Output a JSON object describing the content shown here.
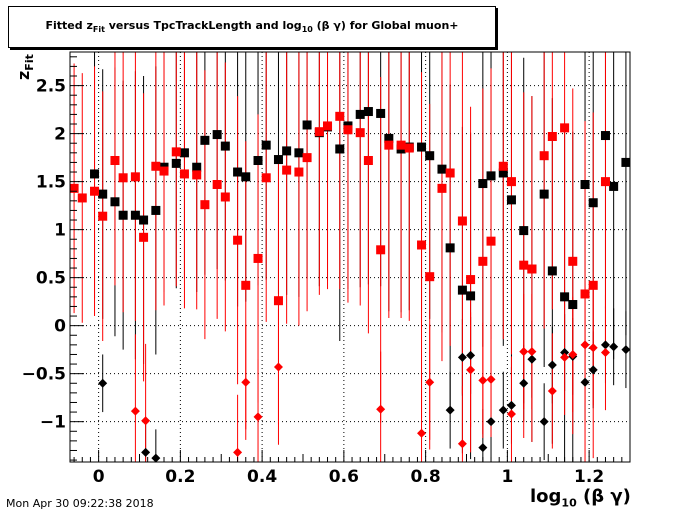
{
  "title_prefix": "Fitted  z",
  "title_sub": "Fit",
  "title_suffix": "  versus TpcTrackLength and log",
  "title_sub2": "10",
  "title_end": " (β γ) for Global muon+",
  "ylabel_main": "z",
  "ylabel_sub": "Fit",
  "xlabel_main": "log",
  "xlabel_sub": "10",
  "xlabel_end": " (β γ)",
  "timestamp": "Mon Apr 30 09:22:38 2018",
  "colors": {
    "black_series": "#000000",
    "red_series": "#ff0000",
    "grid": "#000000"
  },
  "chart_data": {
    "type": "scatter",
    "xlim": [
      -0.07,
      1.3
    ],
    "ylim": [
      -1.42,
      2.85
    ],
    "grid": true,
    "xticks": [
      0,
      0.2,
      0.4,
      0.6,
      0.8,
      1,
      1.2
    ],
    "xtick_labels": [
      "0",
      "0.2",
      "0.4",
      "0.6",
      "0.8",
      "1",
      "1.2"
    ],
    "yticks": [
      -1,
      -0.5,
      0,
      0.5,
      1,
      1.5,
      2,
      2.5
    ],
    "ytick_labels": [
      "−1",
      "−0.5",
      "0",
      "0.5",
      "1",
      "1.5",
      "2",
      "2.5"
    ],
    "series": [
      {
        "color": "#000000",
        "marker": "square",
        "points": [
          [
            -0.01,
            1.58,
            1.3
          ],
          [
            0.01,
            1.37,
            1.3
          ],
          [
            0.04,
            1.29,
            1.4
          ],
          [
            0.06,
            1.15,
            1.4
          ],
          [
            0.09,
            1.15,
            1.5
          ],
          [
            0.11,
            1.1,
            1.5
          ],
          [
            0.14,
            1.2,
            1.5
          ],
          [
            0.16,
            1.65,
            1.3
          ],
          [
            0.19,
            1.69,
            1.3
          ],
          [
            0.21,
            1.8,
            1.3
          ],
          [
            0.24,
            1.65,
            1.3
          ],
          [
            0.26,
            1.93,
            1.4
          ],
          [
            0.29,
            1.99,
            1.4
          ],
          [
            0.31,
            1.87,
            1.4
          ],
          [
            0.34,
            1.6,
            1.4
          ],
          [
            0.36,
            1.55,
            1.3
          ],
          [
            0.39,
            1.72,
            1.3
          ],
          [
            0.41,
            1.88,
            1.4
          ],
          [
            0.44,
            1.73,
            1.4
          ],
          [
            0.46,
            1.82,
            1.5
          ],
          [
            0.49,
            1.8,
            1.5
          ],
          [
            0.51,
            2.09,
            1.6
          ],
          [
            0.54,
            2.01,
            1.6
          ],
          [
            0.56,
            2.07,
            1.6
          ],
          [
            0.59,
            1.84,
            2.0
          ],
          [
            0.61,
            2.08,
            1.7
          ],
          [
            0.64,
            2.2,
            1.8
          ],
          [
            0.66,
            2.23,
            1.8
          ],
          [
            0.69,
            2.21,
            1.8
          ],
          [
            0.71,
            1.95,
            1.8
          ],
          [
            0.74,
            1.84,
            1.7
          ],
          [
            0.76,
            1.86,
            1.7
          ],
          [
            0.79,
            1.86,
            1.7
          ],
          [
            0.81,
            1.77,
            1.7
          ],
          [
            0.84,
            1.63,
            1.7
          ],
          [
            0.86,
            0.81,
            1.7
          ],
          [
            0.89,
            0.37,
            1.7
          ],
          [
            0.91,
            0.31,
            1.7
          ],
          [
            0.94,
            1.48,
            1.7
          ],
          [
            0.96,
            1.56,
            1.7
          ],
          [
            0.99,
            1.59,
            1.8
          ],
          [
            1.01,
            1.31,
            1.8
          ],
          [
            1.04,
            0.99,
            1.8
          ],
          [
            1.06,
            0.59,
            1.8
          ],
          [
            1.09,
            1.37,
            1.8
          ],
          [
            1.11,
            0.57,
            1.8
          ],
          [
            1.14,
            0.3,
            1.8
          ],
          [
            1.16,
            0.22,
            1.8
          ],
          [
            1.19,
            1.47,
            1.8
          ],
          [
            1.21,
            1.28,
            1.8
          ],
          [
            1.24,
            1.98,
            1.8
          ],
          [
            1.26,
            1.45,
            1.8
          ],
          [
            1.29,
            1.7,
            1.8
          ],
          [
            0.01,
            -0.6,
            0.3
          ],
          [
            0.115,
            -1.32,
            0.3
          ],
          [
            0.14,
            -1.38,
            0.3
          ],
          [
            0.86,
            -0.88,
            0.4
          ],
          [
            0.89,
            -0.33,
            0.4
          ],
          [
            0.91,
            -0.31,
            0.4
          ],
          [
            0.94,
            -1.27,
            0.4
          ],
          [
            0.96,
            -1.0,
            0.4
          ],
          [
            0.99,
            -0.88,
            0.4
          ],
          [
            1.01,
            -0.83,
            0.4
          ],
          [
            1.04,
            -0.6,
            0.4
          ],
          [
            1.06,
            -0.35,
            0.4
          ],
          [
            1.09,
            -1.0,
            0.4
          ],
          [
            1.11,
            -0.41,
            0.4
          ],
          [
            1.14,
            -0.28,
            0.4
          ],
          [
            1.16,
            -0.32,
            0.4
          ],
          [
            1.19,
            -0.59,
            0.4
          ],
          [
            1.21,
            -0.46,
            0.4
          ],
          [
            1.24,
            -0.2,
            0.4
          ],
          [
            1.26,
            -0.22,
            0.4
          ],
          [
            1.29,
            -0.25,
            0.4
          ]
        ]
      },
      {
        "color": "#ff0000",
        "marker": "square",
        "points": [
          [
            -0.06,
            1.43,
            1.3
          ],
          [
            -0.04,
            1.33,
            1.3
          ],
          [
            -0.01,
            1.4,
            1.3
          ],
          [
            0.01,
            1.14,
            1.3
          ],
          [
            0.04,
            1.72,
            1.3
          ],
          [
            0.06,
            1.54,
            1.4
          ],
          [
            0.09,
            1.55,
            1.5
          ],
          [
            0.11,
            0.92,
            1.5
          ],
          [
            0.14,
            1.66,
            1.5
          ],
          [
            0.16,
            1.61,
            1.4
          ],
          [
            0.19,
            1.81,
            1.4
          ],
          [
            0.21,
            1.58,
            1.4
          ],
          [
            0.24,
            1.57,
            1.4
          ],
          [
            0.26,
            1.26,
            1.4
          ],
          [
            0.29,
            1.47,
            1.4
          ],
          [
            0.31,
            1.34,
            1.4
          ],
          [
            0.34,
            0.89,
            1.5
          ],
          [
            0.36,
            0.42,
            1.5
          ],
          [
            0.39,
            0.7,
            1.5
          ],
          [
            0.41,
            1.54,
            1.5
          ],
          [
            0.44,
            0.26,
            1.5
          ],
          [
            0.46,
            1.62,
            1.6
          ],
          [
            0.49,
            1.6,
            1.6
          ],
          [
            0.51,
            1.75,
            1.6
          ],
          [
            0.54,
            2.02,
            1.7
          ],
          [
            0.56,
            2.08,
            1.7
          ],
          [
            0.59,
            2.18,
            1.8
          ],
          [
            0.61,
            2.04,
            1.8
          ],
          [
            0.64,
            2.01,
            1.8
          ],
          [
            0.66,
            1.72,
            1.8
          ],
          [
            0.69,
            0.79,
            1.8
          ],
          [
            0.71,
            1.88,
            1.8
          ],
          [
            0.74,
            1.88,
            1.8
          ],
          [
            0.76,
            1.85,
            1.8
          ],
          [
            0.79,
            0.84,
            1.8
          ],
          [
            0.81,
            0.51,
            1.8
          ],
          [
            0.84,
            1.43,
            1.8
          ],
          [
            0.86,
            1.59,
            1.8
          ],
          [
            0.89,
            1.09,
            1.8
          ],
          [
            0.91,
            0.48,
            1.8
          ],
          [
            0.94,
            0.67,
            1.8
          ],
          [
            0.96,
            0.88,
            1.8
          ],
          [
            0.99,
            1.66,
            1.8
          ],
          [
            1.01,
            1.5,
            1.8
          ],
          [
            1.04,
            0.63,
            1.8
          ],
          [
            1.06,
            0.59,
            1.8
          ],
          [
            1.09,
            1.77,
            1.8
          ],
          [
            1.11,
            1.97,
            1.8
          ],
          [
            1.14,
            2.06,
            1.8
          ],
          [
            1.16,
            0.67,
            1.8
          ],
          [
            1.19,
            0.33,
            1.8
          ],
          [
            1.21,
            0.42,
            1.8
          ],
          [
            1.24,
            1.5,
            1.8
          ],
          [
            0.09,
            -0.89,
            0.8
          ],
          [
            0.115,
            -0.99,
            0.8
          ],
          [
            0.34,
            -1.32,
            0.6
          ],
          [
            0.36,
            -0.59,
            0.6
          ],
          [
            0.39,
            -0.95,
            0.6
          ],
          [
            0.44,
            -0.43,
            0.6
          ],
          [
            0.69,
            -0.87,
            0.6
          ],
          [
            0.79,
            -1.12,
            0.6
          ],
          [
            0.81,
            -0.59,
            0.6
          ],
          [
            0.89,
            -1.23,
            0.6
          ],
          [
            0.91,
            -0.46,
            0.6
          ],
          [
            0.94,
            -0.57,
            0.6
          ],
          [
            0.96,
            -0.56,
            0.6
          ],
          [
            1.01,
            -0.92,
            0.6
          ],
          [
            1.04,
            -0.27,
            0.6
          ],
          [
            1.06,
            -0.27,
            0.6
          ],
          [
            1.11,
            -0.68,
            0.6
          ],
          [
            1.14,
            -0.33,
            0.6
          ],
          [
            1.16,
            -0.3,
            0.6
          ],
          [
            1.19,
            -0.2,
            0.6
          ],
          [
            1.21,
            -0.23,
            0.6
          ],
          [
            1.24,
            -0.28,
            0.6
          ]
        ]
      }
    ]
  }
}
